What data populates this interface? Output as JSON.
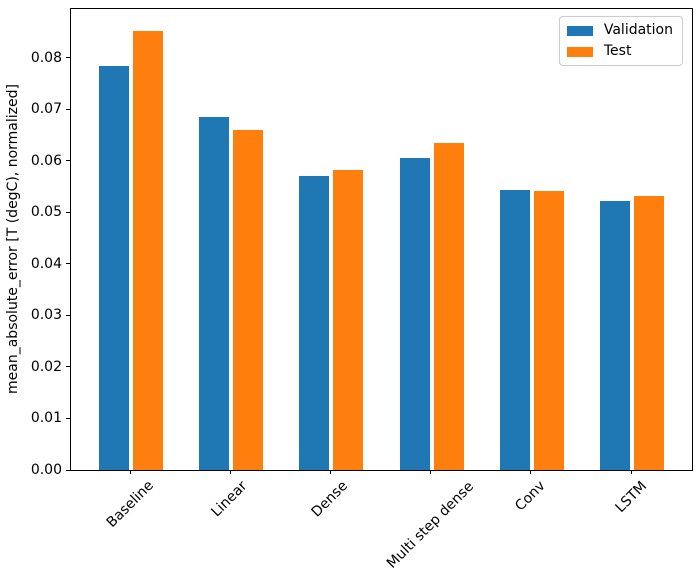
{
  "chart_data": {
    "type": "bar",
    "title": "",
    "xlabel": "",
    "ylabel": "mean_absolute_error [T (degC), normalized]",
    "categories": [
      "Baseline",
      "Linear",
      "Dense",
      "Multi step dense",
      "Conv",
      "LSTM"
    ],
    "series": [
      {
        "name": "Validation",
        "color": "#1f77b4",
        "values": [
          0.0785,
          0.0685,
          0.057,
          0.0606,
          0.0543,
          0.0523
        ]
      },
      {
        "name": "Test",
        "color": "#ff7f0e",
        "values": [
          0.0852,
          0.0661,
          0.0582,
          0.0634,
          0.0541,
          0.0532
        ]
      }
    ],
    "ylim": [
      0,
      0.0895
    ],
    "yticks": [
      {
        "value": 0.0,
        "label": "0.00"
      },
      {
        "value": 0.01,
        "label": "0.01"
      },
      {
        "value": 0.02,
        "label": "0.02"
      },
      {
        "value": 0.03,
        "label": "0.03"
      },
      {
        "value": 0.04,
        "label": "0.04"
      },
      {
        "value": 0.05,
        "label": "0.05"
      },
      {
        "value": 0.06,
        "label": "0.06"
      },
      {
        "value": 0.07,
        "label": "0.07"
      },
      {
        "value": 0.08,
        "label": "0.08"
      }
    ],
    "legend": {
      "position": "upper right",
      "entries": [
        "Validation",
        "Test"
      ]
    },
    "grid": false,
    "xtick_rotation_deg": 45,
    "background_color": "#ffffff",
    "spine_color": "#000000"
  }
}
